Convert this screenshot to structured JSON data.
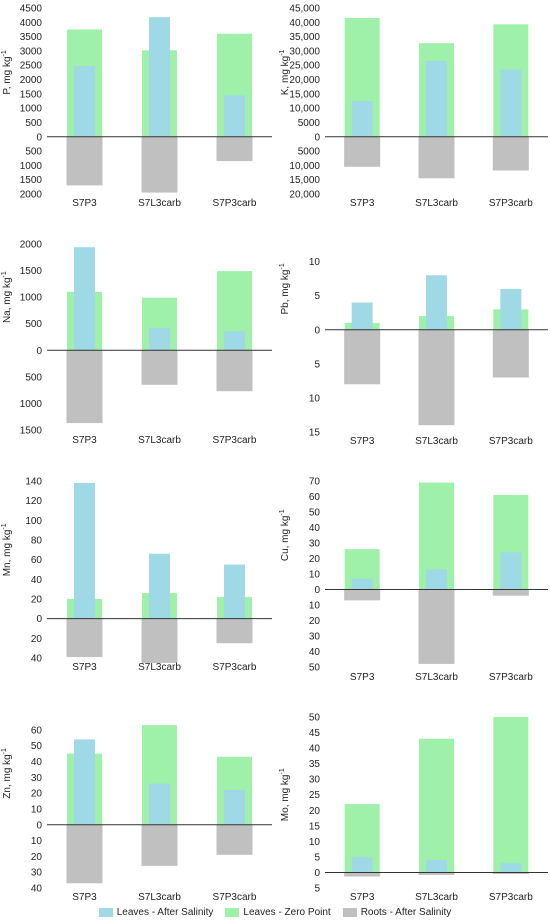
{
  "colors": {
    "leaves_after": "#9fd9e6",
    "leaves_zero": "#9ff0a8",
    "roots_after": "#c0c0c0"
  },
  "legend": [
    {
      "series": "leaves_after",
      "label": "Leaves - After Salinity"
    },
    {
      "series": "leaves_zero",
      "label": "Leaves - Zero Point"
    },
    {
      "series": "roots_after",
      "label": "Roots - After Salinity"
    }
  ],
  "chart_data": [
    {
      "type": "bar",
      "ylabel": "P, mg kg",
      "ylabel_sup": "-1",
      "categories": [
        "S7P3",
        "S7L3carb",
        "S7P3carb"
      ],
      "ylim": [
        -2000,
        4500
      ],
      "ticks": [
        "4500",
        "4000",
        "3500",
        "3000",
        "2500",
        "2000",
        "1500",
        "1000",
        "500",
        "0",
        "500",
        "1000",
        "1500",
        "2000"
      ],
      "tick_values": [
        4500,
        4000,
        3500,
        3000,
        2500,
        2000,
        1500,
        1000,
        500,
        0,
        -500,
        -1000,
        -1500,
        -2000
      ],
      "series": [
        {
          "key": "leaves_zero",
          "name": "Leaves - Zero Point",
          "values": [
            3750,
            3020,
            3600
          ]
        },
        {
          "key": "leaves_after",
          "name": "Leaves - After Salinity",
          "values": [
            2470,
            4180,
            1450
          ]
        },
        {
          "key": "roots_after",
          "name": "Roots - After Salinity",
          "values": [
            -1700,
            -1950,
            -850
          ]
        }
      ]
    },
    {
      "type": "bar",
      "ylabel": "K, mg kg",
      "ylabel_sup": "-1",
      "categories": [
        "S7P3",
        "S7L3carb",
        "S7P3carb"
      ],
      "ylim": [
        -20000,
        45000
      ],
      "ticks": [
        "45,000",
        "40,000",
        "35,000",
        "30,000",
        "25,000",
        "20,000",
        "15,000",
        "10,000",
        "5000",
        "0",
        "5000",
        "10,000",
        "15,000",
        "20,000"
      ],
      "tick_values": [
        45000,
        40000,
        35000,
        30000,
        25000,
        20000,
        15000,
        10000,
        5000,
        0,
        -5000,
        -10000,
        -15000,
        -20000
      ],
      "series": [
        {
          "key": "leaves_zero",
          "name": "Leaves - Zero Point",
          "values": [
            41500,
            32700,
            39300
          ]
        },
        {
          "key": "leaves_after",
          "name": "Leaves - After Salinity",
          "values": [
            12500,
            26500,
            23500
          ]
        },
        {
          "key": "roots_after",
          "name": "Roots - After Salinity",
          "values": [
            -10500,
            -14500,
            -11800
          ]
        }
      ]
    },
    {
      "type": "bar",
      "ylabel": "Na, mg kg",
      "ylabel_sup": "-1",
      "categories": [
        "S7P3",
        "S7L3carb",
        "S7P3carb"
      ],
      "ylim": [
        -1500,
        2000
      ],
      "ticks": [
        "2000",
        "1500",
        "1000",
        "500",
        "0",
        "500",
        "1000",
        "1500"
      ],
      "tick_values": [
        2000,
        1500,
        1000,
        500,
        0,
        -500,
        -1000,
        -1500
      ],
      "series": [
        {
          "key": "leaves_zero",
          "name": "Leaves - Zero Point",
          "values": [
            1100,
            990,
            1490
          ]
        },
        {
          "key": "leaves_after",
          "name": "Leaves - After Salinity",
          "values": [
            1940,
            420,
            360
          ]
        },
        {
          "key": "roots_after",
          "name": "Roots - After Salinity",
          "values": [
            -1370,
            -650,
            -770
          ]
        }
      ]
    },
    {
      "type": "bar",
      "ylabel": "Pb, mg kg",
      "ylabel_sup": "-1",
      "categories": [
        "S7P3",
        "S7L3carb",
        "S7P3carb"
      ],
      "ylim": [
        -15,
        12
      ],
      "ticks": [
        "10",
        "5",
        "0",
        "5",
        "10",
        "15"
      ],
      "tick_values": [
        10,
        5,
        0,
        -5,
        -10,
        -15
      ],
      "series": [
        {
          "key": "leaves_zero",
          "name": "Leaves - Zero Point",
          "values": [
            1,
            2,
            3
          ]
        },
        {
          "key": "leaves_after",
          "name": "Leaves - After Salinity",
          "values": [
            4,
            8,
            6
          ]
        },
        {
          "key": "roots_after",
          "name": "Roots - After Salinity",
          "values": [
            -8,
            -14,
            -7
          ]
        }
      ]
    },
    {
      "type": "bar",
      "ylabel": "Mn, mg kg",
      "ylabel_sup": "-1",
      "categories": [
        "S7P3",
        "S7L3carb",
        "S7P3carb"
      ],
      "ylim": [
        -40,
        140
      ],
      "ticks": [
        "140",
        "120",
        "100",
        "80",
        "60",
        "40",
        "20",
        "0",
        "20",
        "40"
      ],
      "tick_values": [
        140,
        120,
        100,
        80,
        60,
        40,
        20,
        0,
        -20,
        -40
      ],
      "series": [
        {
          "key": "leaves_zero",
          "name": "Leaves - Zero Point",
          "values": [
            20,
            26,
            22
          ]
        },
        {
          "key": "leaves_after",
          "name": "Leaves - After Salinity",
          "values": [
            138,
            66,
            55
          ]
        },
        {
          "key": "roots_after",
          "name": "Roots - After Salinity",
          "values": [
            -39,
            -45,
            -25
          ]
        }
      ]
    },
    {
      "type": "bar",
      "ylabel": "Cu, mg kg",
      "ylabel_sup": "-1",
      "categories": [
        "S7P3",
        "S7L3carb",
        "S7P3carb"
      ],
      "ylim": [
        -50,
        70
      ],
      "ticks": [
        "70",
        "60",
        "50",
        "40",
        "30",
        "20",
        "10",
        "0",
        "10",
        "20",
        "30",
        "40",
        "50"
      ],
      "tick_values": [
        70,
        60,
        50,
        40,
        30,
        20,
        10,
        0,
        -10,
        -20,
        -30,
        -40,
        -50
      ],
      "series": [
        {
          "key": "leaves_zero",
          "name": "Leaves - Zero Point",
          "values": [
            26,
            69,
            61
          ]
        },
        {
          "key": "leaves_after",
          "name": "Leaves - After Salinity",
          "values": [
            7,
            13,
            24
          ]
        },
        {
          "key": "roots_after",
          "name": "Roots - After Salinity",
          "values": [
            -7,
            -48,
            -4
          ]
        }
      ]
    },
    {
      "type": "bar",
      "ylabel": "Zn, mg kg",
      "ylabel_sup": "-1",
      "categories": [
        "S7P3",
        "S7L3carb",
        "S7P3carb"
      ],
      "ylim": [
        -40,
        65
      ],
      "ticks": [
        "60",
        "50",
        "40",
        "30",
        "20",
        "10",
        "0",
        "10",
        "20",
        "30",
        "40"
      ],
      "tick_values": [
        60,
        50,
        40,
        30,
        20,
        10,
        0,
        -10,
        -20,
        -30,
        -40
      ],
      "series": [
        {
          "key": "leaves_zero",
          "name": "Leaves - Zero Point",
          "values": [
            45,
            63,
            43
          ]
        },
        {
          "key": "leaves_after",
          "name": "Leaves - After Salinity",
          "values": [
            54,
            26,
            22
          ]
        },
        {
          "key": "roots_after",
          "name": "Roots - After Salinity",
          "values": [
            -37,
            -26,
            -19
          ]
        }
      ]
    },
    {
      "type": "bar",
      "ylabel": "Mo, mg kg",
      "ylabel_sup": "-1",
      "categories": [
        "S7P3",
        "S7L3carb",
        "S7P3carb"
      ],
      "ylim": [
        -5,
        50
      ],
      "ticks": [
        "50",
        "45",
        "40",
        "35",
        "30",
        "25",
        "20",
        "15",
        "10",
        "5",
        "0",
        "5"
      ],
      "tick_values": [
        50,
        45,
        40,
        35,
        30,
        25,
        20,
        15,
        10,
        5,
        0,
        -5
      ],
      "series": [
        {
          "key": "leaves_zero",
          "name": "Leaves - Zero Point",
          "values": [
            22,
            43,
            50
          ]
        },
        {
          "key": "leaves_after",
          "name": "Leaves - After Salinity",
          "values": [
            5,
            4,
            3
          ]
        },
        {
          "key": "roots_after",
          "name": "Roots - After Salinity",
          "values": [
            -1.3,
            -0.8,
            -0.5
          ]
        }
      ]
    }
  ]
}
